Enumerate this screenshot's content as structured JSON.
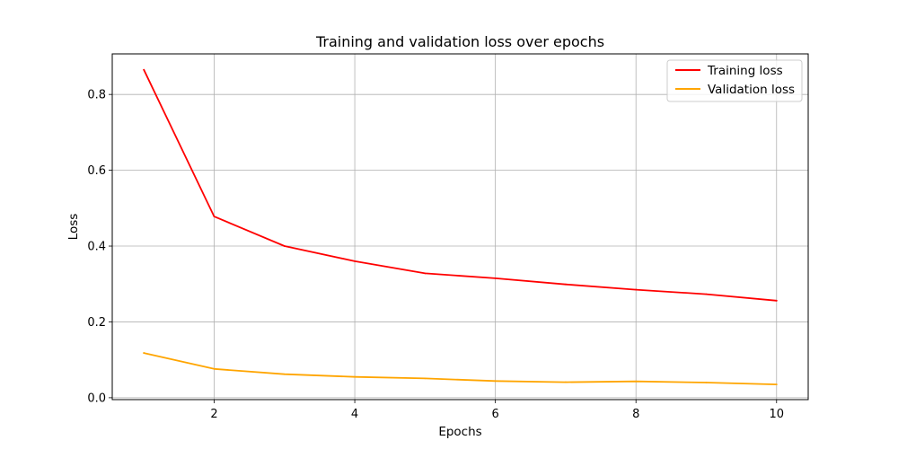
{
  "chart_data": {
    "type": "line",
    "title": "Training and validation loss over epochs",
    "xlabel": "Epochs",
    "ylabel": "Loss",
    "x": [
      1,
      2,
      3,
      4,
      5,
      6,
      7,
      8,
      9,
      10
    ],
    "xlim": [
      0.55,
      10.45
    ],
    "ylim": [
      -0.005,
      0.907
    ],
    "xticks": [
      2,
      4,
      6,
      8,
      10
    ],
    "xtick_labels": [
      "2",
      "4",
      "6",
      "8",
      "10"
    ],
    "yticks": [
      0.0,
      0.2,
      0.4,
      0.6,
      0.8
    ],
    "ytick_labels": [
      "0.0",
      "0.2",
      "0.4",
      "0.6",
      "0.8"
    ],
    "grid": true,
    "legend_position": "top-right",
    "series": [
      {
        "name": "Training loss",
        "color": "#ff0000",
        "values": [
          0.865,
          0.478,
          0.4,
          0.36,
          0.328,
          0.315,
          0.299,
          0.285,
          0.273,
          0.256
        ]
      },
      {
        "name": "Validation loss",
        "color": "#ffa500",
        "values": [
          0.118,
          0.076,
          0.062,
          0.055,
          0.051,
          0.044,
          0.041,
          0.043,
          0.04,
          0.035
        ]
      }
    ]
  }
}
